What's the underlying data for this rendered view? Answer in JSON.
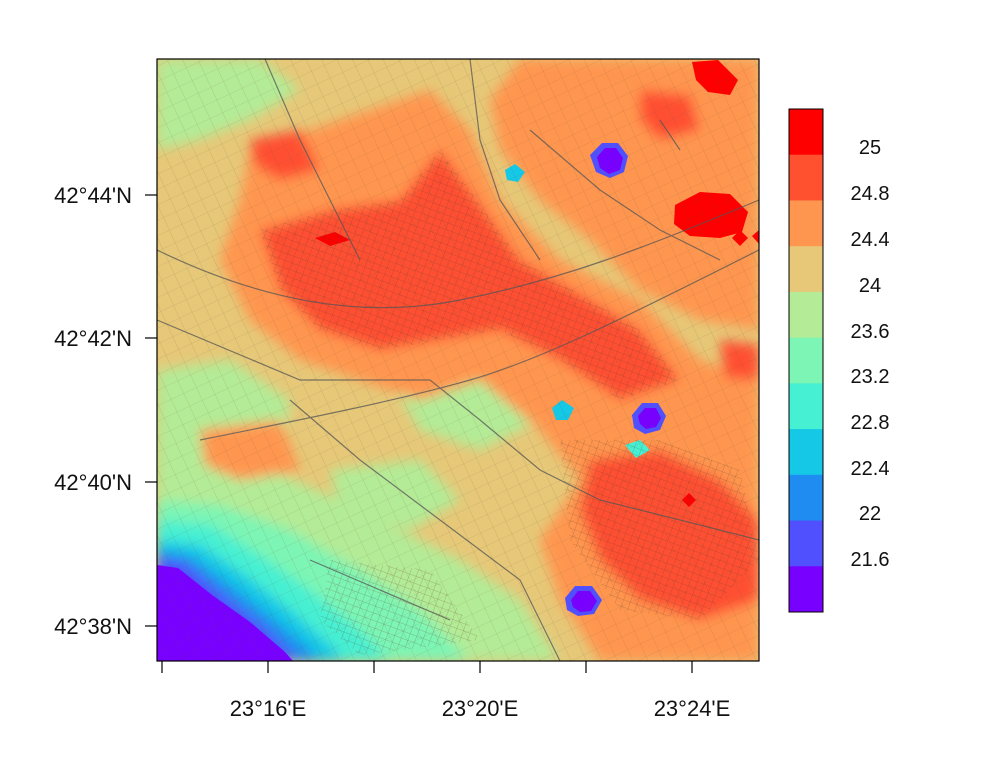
{
  "map": {
    "lat_labels": [
      "42°44'N",
      "42°42'N",
      "42°40'N",
      "42°38'N"
    ],
    "lon_labels": [
      "23°16'E",
      "23°20'E",
      "23°24'E"
    ],
    "lat_range": [
      "42°37.5'N",
      "42°45.8'N"
    ],
    "lon_range": [
      "23°14'E",
      "23°25'E"
    ],
    "overlay": "road network"
  },
  "legend": {
    "labels": [
      "25",
      "24.8",
      "24.4",
      "24",
      "23.6",
      "23.2",
      "22.8",
      "22.4",
      "22",
      "21.6"
    ],
    "colors": [
      "#ff0000",
      "#ff5030",
      "#ff9650",
      "#e6c878",
      "#b4eb96",
      "#7df5b4",
      "#46f0d2",
      "#14c8e6",
      "#1e8cf0",
      "#5050ff",
      "#7800ff"
    ]
  },
  "colors": {
    "v25": "#ff0000",
    "v248": "#ff5030",
    "v244": "#ff9650",
    "v24": "#e6c878",
    "v236": "#b4eb96",
    "v232": "#7df5b4",
    "v228": "#46f0d2",
    "v224": "#14c8e6",
    "v22": "#1e8cf0",
    "v216": "#5050ff",
    "vlow": "#7800ff"
  }
}
